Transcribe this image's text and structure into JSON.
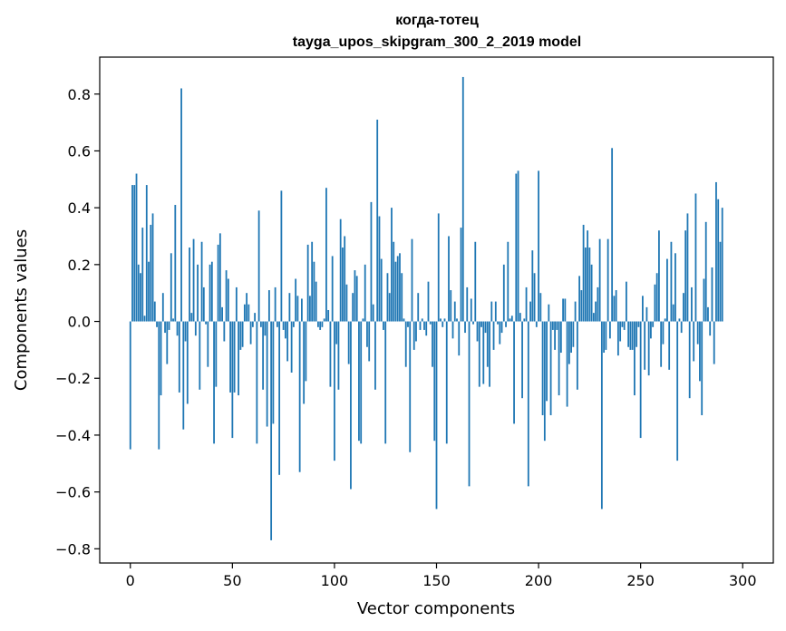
{
  "chart_data": {
    "type": "bar",
    "title": "когда-тотец",
    "subtitle": "tayga_upos_skipgram_300_2_2019 model",
    "xlabel": "Vector components",
    "ylabel": "Components values",
    "xlim": [
      -15,
      315
    ],
    "ylim": [
      -0.85,
      0.93
    ],
    "x_ticks": [
      0,
      50,
      100,
      150,
      200,
      250,
      300
    ],
    "x_tick_labels": [
      "0",
      "50",
      "100",
      "150",
      "200",
      "250",
      "300"
    ],
    "y_ticks": [
      -0.8,
      -0.6,
      -0.4,
      -0.2,
      0.0,
      0.2,
      0.4,
      0.6,
      0.8
    ],
    "y_tick_labels": [
      "−0.8",
      "−0.6",
      "−0.4",
      "−0.2",
      "0.0",
      "0.2",
      "0.4",
      "0.6",
      "0.8"
    ],
    "grid": false,
    "bar_color": "#1f77b4",
    "values": [
      -0.45,
      0.48,
      0.48,
      0.52,
      0.2,
      0.17,
      0.33,
      0.02,
      0.48,
      0.21,
      0.34,
      0.38,
      0.07,
      -0.02,
      -0.45,
      -0.26,
      0.1,
      -0.04,
      -0.15,
      -0.03,
      0.24,
      0.01,
      0.41,
      -0.05,
      -0.25,
      0.82,
      -0.38,
      -0.07,
      -0.29,
      0.26,
      0.03,
      0.29,
      -0.05,
      0.2,
      -0.24,
      0.28,
      0.12,
      -0.01,
      -0.16,
      0.2,
      0.21,
      -0.43,
      -0.23,
      0.27,
      0.31,
      0.05,
      -0.07,
      0.18,
      0.15,
      -0.25,
      -0.41,
      -0.25,
      0.12,
      -0.26,
      -0.1,
      -0.09,
      0.06,
      0.1,
      0.06,
      -0.08,
      -0.02,
      0.03,
      -0.43,
      0.39,
      -0.02,
      -0.24,
      -0.05,
      -0.37,
      0.11,
      -0.77,
      -0.36,
      0.12,
      -0.02,
      -0.54,
      0.46,
      -0.03,
      -0.06,
      -0.14,
      0.1,
      -0.18,
      -0.02,
      0.15,
      0.09,
      -0.53,
      0.08,
      -0.29,
      -0.21,
      0.27,
      0.09,
      0.28,
      0.21,
      0.14,
      -0.02,
      -0.03,
      -0.02,
      0.01,
      0.47,
      0.04,
      -0.23,
      0.23,
      -0.49,
      -0.08,
      -0.24,
      0.36,
      0.26,
      0.3,
      0.13,
      -0.15,
      -0.59,
      0.1,
      0.18,
      0.16,
      -0.42,
      -0.43,
      0.01,
      0.2,
      -0.09,
      -0.14,
      0.42,
      0.06,
      -0.24,
      0.71,
      0.37,
      0.22,
      -0.03,
      -0.43,
      0.17,
      0.1,
      0.4,
      0.28,
      0.21,
      0.23,
      0.24,
      0.17,
      0.01,
      -0.16,
      -0.02,
      -0.46,
      0.29,
      -0.1,
      -0.07,
      0.1,
      -0.03,
      0.01,
      -0.03,
      -0.05,
      0.14,
      -0.01,
      -0.16,
      -0.42,
      -0.66,
      0.38,
      0.01,
      -0.02,
      0.01,
      -0.43,
      0.3,
      0.11,
      -0.06,
      0.07,
      0.01,
      -0.12,
      0.33,
      0.86,
      -0.04,
      0.12,
      -0.58,
      0.08,
      -0.01,
      0.28,
      -0.07,
      -0.23,
      -0.02,
      -0.22,
      -0.04,
      -0.16,
      -0.23,
      0.07,
      -0.1,
      0.07,
      -0.01,
      -0.08,
      -0.04,
      0.2,
      -0.02,
      0.28,
      0.01,
      0.02,
      -0.36,
      0.52,
      0.53,
      0.03,
      -0.27,
      0.01,
      0.12,
      -0.58,
      0.07,
      0.25,
      0.17,
      -0.02,
      0.53,
      0.1,
      -0.33,
      -0.42,
      -0.28,
      0.06,
      -0.33,
      -0.03,
      -0.1,
      -0.03,
      -0.26,
      -0.11,
      0.08,
      0.08,
      -0.3,
      -0.15,
      -0.11,
      -0.09,
      0.07,
      -0.24,
      0.16,
      0.11,
      0.34,
      0.26,
      0.32,
      0.26,
      0.2,
      0.03,
      0.07,
      0.12,
      0.29,
      -0.66,
      -0.11,
      -0.1,
      0.29,
      -0.06,
      0.61,
      0.09,
      0.11,
      -0.12,
      -0.07,
      -0.02,
      -0.03,
      0.14,
      -0.09,
      -0.1,
      -0.1,
      -0.26,
      -0.09,
      -0.02,
      -0.41,
      0.09,
      -0.17,
      0.05,
      -0.19,
      -0.06,
      -0.02,
      0.13,
      0.17,
      0.32,
      -0.16,
      -0.08,
      0.01,
      0.22,
      -0.17,
      0.28,
      0.06,
      0.24,
      -0.49,
      0.01,
      -0.04,
      0.1,
      0.32,
      0.38,
      -0.27,
      0.12,
      -0.14,
      0.45,
      -0.08,
      -0.21,
      -0.33,
      0.15,
      0.35,
      0.05,
      -0.05,
      0.19,
      -0.15,
      0.49,
      0.43,
      0.28,
      0.4
    ]
  }
}
